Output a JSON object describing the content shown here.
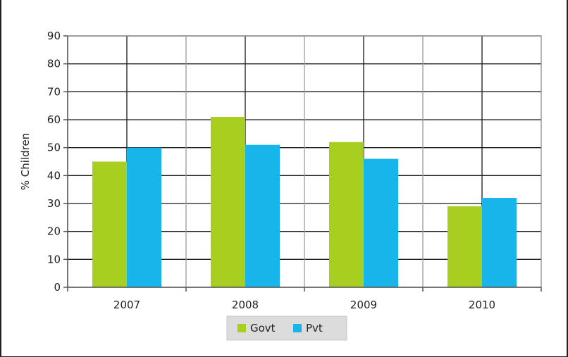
{
  "chart_data": {
    "type": "bar",
    "title": "",
    "xlabel": "",
    "ylabel": "% Children",
    "categories": [
      "2007",
      "2008",
      "2009",
      "2010"
    ],
    "series": [
      {
        "name": "Govt",
        "values": [
          45,
          61,
          52,
          29
        ],
        "color": "#a8cf1f"
      },
      {
        "name": "Pvt",
        "values": [
          50,
          51,
          46,
          32
        ],
        "color": "#17b5ea"
      }
    ],
    "ylim": [
      0,
      90
    ],
    "yticks": [
      0,
      10,
      20,
      30,
      40,
      50,
      60,
      70,
      80,
      90
    ],
    "grid": true,
    "legend_position": "bottom"
  }
}
